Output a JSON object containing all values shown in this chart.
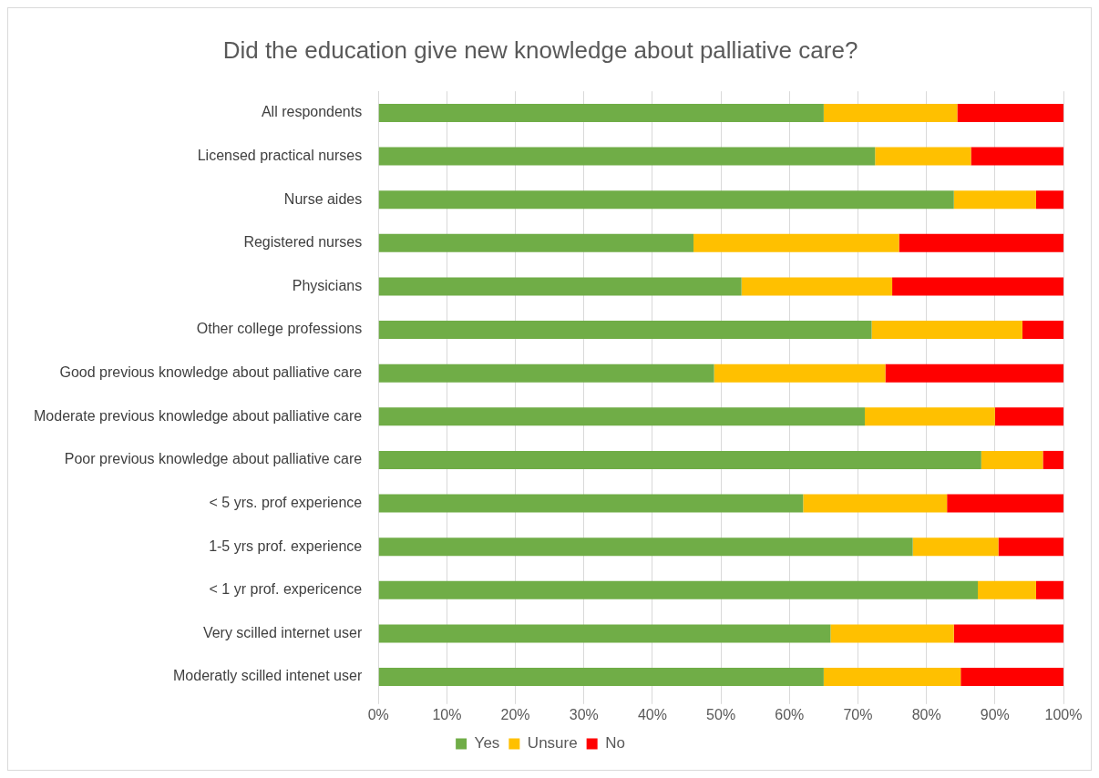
{
  "chart_data": {
    "type": "bar",
    "orientation": "horizontal",
    "stacked": true,
    "title": "Did the education give new knowledge about palliative care?",
    "categories": [
      "All respondents",
      "Licensed practical nurses",
      "Nurse aides",
      "Registered nurses",
      "Physicians",
      "Other college professions",
      "Good previous knowledge about palliative care",
      "Moderate previous knowledge about palliative care",
      "Poor previous knowledge about palliative care",
      "< 5 yrs. prof experience",
      "1-5 yrs prof. experience",
      "< 1 yr prof. expericence",
      "Very scilled internet user",
      "Moderatly scilled intenet user"
    ],
    "series": [
      {
        "name": "Yes",
        "color": "#70ad47",
        "values": [
          65,
          72.5,
          84,
          46,
          53,
          72,
          49,
          71,
          88,
          62,
          78,
          87.5,
          66,
          65
        ]
      },
      {
        "name": "Unsure",
        "color": "#ffc000",
        "values": [
          19.5,
          14,
          12,
          30,
          22,
          22,
          25,
          19,
          9,
          21,
          12.5,
          8.5,
          18,
          20
        ]
      },
      {
        "name": "No",
        "color": "#ff0000",
        "values": [
          15.5,
          13.5,
          4,
          24,
          25,
          6,
          26,
          10,
          3,
          17,
          9.5,
          4,
          16,
          15
        ]
      }
    ],
    "xlim": [
      0,
      100
    ],
    "xticks": [
      {
        "value": 0,
        "label": "0%"
      },
      {
        "value": 10,
        "label": "10%"
      },
      {
        "value": 20,
        "label": "20%"
      },
      {
        "value": 30,
        "label": "30%"
      },
      {
        "value": 40,
        "label": "40%"
      },
      {
        "value": 50,
        "label": "50%"
      },
      {
        "value": 60,
        "label": "60%"
      },
      {
        "value": 70,
        "label": "70%"
      },
      {
        "value": 80,
        "label": "80%"
      },
      {
        "value": 90,
        "label": "90%"
      },
      {
        "value": 100,
        "label": "100%"
      }
    ],
    "grid": "x",
    "legend": "bottom"
  }
}
